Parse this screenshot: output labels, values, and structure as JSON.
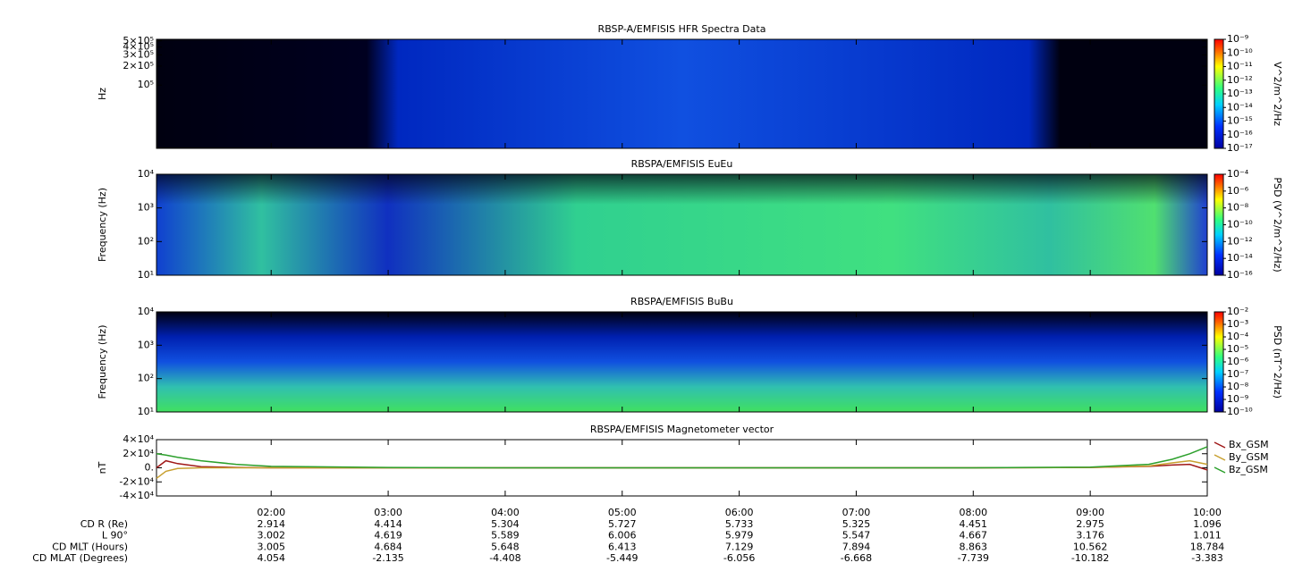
{
  "chart_data": [
    {
      "type": "spectrogram",
      "title": "RBSP-A/EMFISIS  HFR Spectra Data",
      "y_label": "Hz",
      "log_y": true,
      "ylim": [
        10000,
        530000
      ],
      "yticks": [
        {
          "value": 100000,
          "label": "10⁵"
        },
        {
          "value": 200000,
          "label": "2×10⁵"
        },
        {
          "value": 300000,
          "label": "3×10⁵"
        },
        {
          "value": 400000,
          "label": "4×10⁵"
        },
        {
          "value": 500000,
          "label": "5×10⁵"
        }
      ],
      "colorbar": {
        "label": "V^2/m^2/Hz",
        "log": true,
        "lim": [
          1e-17,
          1e-09
        ],
        "ticks": [
          {
            "value": 1e-09,
            "label": "10⁻⁹"
          },
          {
            "value": 1e-10,
            "label": "10⁻¹⁰"
          },
          {
            "value": 1e-11,
            "label": "10⁻¹¹"
          },
          {
            "value": 1e-12,
            "label": "10⁻¹²"
          },
          {
            "value": 1e-13,
            "label": "10⁻¹³"
          },
          {
            "value": 1e-14,
            "label": "10⁻¹⁴"
          },
          {
            "value": 1e-15,
            "label": "10⁻¹⁵"
          },
          {
            "value": 1e-16,
            "label": "10⁻¹⁶"
          },
          {
            "value": 1e-17,
            "label": "10⁻¹⁷"
          }
        ]
      }
    },
    {
      "type": "spectrogram",
      "title": "RBSPA/EMFISIS  EuEu",
      "y_label": "Frequency (Hz)",
      "log_y": true,
      "ylim": [
        10,
        10000
      ],
      "yticks": [
        {
          "value": 10,
          "label": "10¹"
        },
        {
          "value": 100,
          "label": "10²"
        },
        {
          "value": 1000,
          "label": "10³"
        },
        {
          "value": 10000,
          "label": "10⁴"
        }
      ],
      "colorbar": {
        "label": "PSD (V^2/m^2/Hz)",
        "log": true,
        "lim": [
          1e-16,
          0.0001
        ],
        "ticks": [
          {
            "value": 0.0001,
            "label": "10⁻⁴"
          },
          {
            "value": 1e-06,
            "label": "10⁻⁶"
          },
          {
            "value": 1e-08,
            "label": "10⁻⁸"
          },
          {
            "value": 1e-10,
            "label": "10⁻¹⁰"
          },
          {
            "value": 1e-12,
            "label": "10⁻¹²"
          },
          {
            "value": 1e-14,
            "label": "10⁻¹⁴"
          },
          {
            "value": 1e-16,
            "label": "10⁻¹⁶"
          }
        ]
      }
    },
    {
      "type": "spectrogram",
      "title": "RBSPA/EMFISIS  BuBu",
      "y_label": "Frequency (Hz)",
      "log_y": true,
      "ylim": [
        10,
        10000
      ],
      "yticks": [
        {
          "value": 10,
          "label": "10¹"
        },
        {
          "value": 100,
          "label": "10²"
        },
        {
          "value": 1000,
          "label": "10³"
        },
        {
          "value": 10000,
          "label": "10⁴"
        }
      ],
      "colorbar": {
        "label": "PSD (nT^2/Hz)",
        "log": true,
        "lim": [
          1e-10,
          0.01
        ],
        "ticks": [
          {
            "value": 0.01,
            "label": "10⁻²"
          },
          {
            "value": 0.001,
            "label": "10⁻³"
          },
          {
            "value": 0.0001,
            "label": "10⁻⁴"
          },
          {
            "value": 1e-05,
            "label": "10⁻⁵"
          },
          {
            "value": 1e-06,
            "label": "10⁻⁶"
          },
          {
            "value": 1e-07,
            "label": "10⁻⁷"
          },
          {
            "value": 1e-08,
            "label": "10⁻⁸"
          },
          {
            "value": 1e-09,
            "label": "10⁻⁹"
          },
          {
            "value": 1e-10,
            "label": "10⁻¹⁰"
          }
        ]
      }
    },
    {
      "type": "line",
      "title": "RBSPA/EMFISIS  Magnetometer vector",
      "y_label": "nT",
      "ylim": [
        -40000,
        40000
      ],
      "yticks": [
        {
          "value": 40000,
          "label": "4×10⁴"
        },
        {
          "value": 20000,
          "label": "2×10⁴"
        },
        {
          "value": 0,
          "label": "0."
        },
        {
          "value": -20000,
          "label": "-2×10⁴"
        },
        {
          "value": -40000,
          "label": "-4×10⁴"
        }
      ],
      "legend": "right",
      "x": [
        1.02,
        1.1,
        1.2,
        1.4,
        1.7,
        2,
        3,
        4,
        5,
        6,
        7,
        8,
        9,
        9.5,
        9.7,
        9.85,
        10
      ],
      "series": [
        {
          "name": "Bx_GSM",
          "color": "#a01818",
          "values": [
            0,
            10000,
            6000,
            1500,
            500,
            0,
            0,
            0,
            0,
            0,
            0,
            0,
            500,
            2000,
            4000,
            5000,
            -3000
          ]
        },
        {
          "name": "By_GSM",
          "color": "#c8a030",
          "values": [
            -15000,
            -5000,
            -1000,
            0,
            0,
            0,
            0,
            0,
            0,
            0,
            0,
            0,
            500,
            2500,
            7000,
            10000,
            5000
          ]
        },
        {
          "name": "Bz_GSM",
          "color": "#2ca02c",
          "values": [
            20000,
            18000,
            15000,
            10000,
            5000,
            2000,
            500,
            0,
            0,
            0,
            0,
            0,
            1000,
            5000,
            12000,
            20000,
            30000
          ]
        }
      ]
    }
  ],
  "time_axis": {
    "xlim": [
      1.02,
      10
    ],
    "xticks": [
      {
        "value": 2,
        "label": "02:00"
      },
      {
        "value": 3,
        "label": "03:00"
      },
      {
        "value": 4,
        "label": "04:00"
      },
      {
        "value": 5,
        "label": "05:00"
      },
      {
        "value": 6,
        "label": "06:00"
      },
      {
        "value": 7,
        "label": "07:00"
      },
      {
        "value": 8,
        "label": "08:00"
      },
      {
        "value": 9,
        "label": "09:00"
      },
      {
        "value": 10,
        "label": "10:00"
      }
    ],
    "rows": [
      {
        "label": "CD R (Re)",
        "values": [
          2.914,
          4.414,
          5.304,
          5.727,
          5.733,
          5.325,
          4.451,
          2.975,
          1.096
        ]
      },
      {
        "label": "L 90°",
        "values": [
          3.002,
          4.619,
          5.589,
          6.006,
          5.979,
          5.547,
          4.667,
          3.176,
          1.011
        ]
      },
      {
        "label": "CD MLT (Hours)",
        "values": [
          3.005,
          4.684,
          5.648,
          6.413,
          7.129,
          7.894,
          8.863,
          10.562,
          18.784
        ]
      },
      {
        "label": "CD MLAT (Degrees)",
        "values": [
          4.054,
          -2.135,
          -4.408,
          -5.449,
          -6.056,
          -6.668,
          -7.739,
          -10.182,
          -3.383
        ]
      }
    ]
  }
}
